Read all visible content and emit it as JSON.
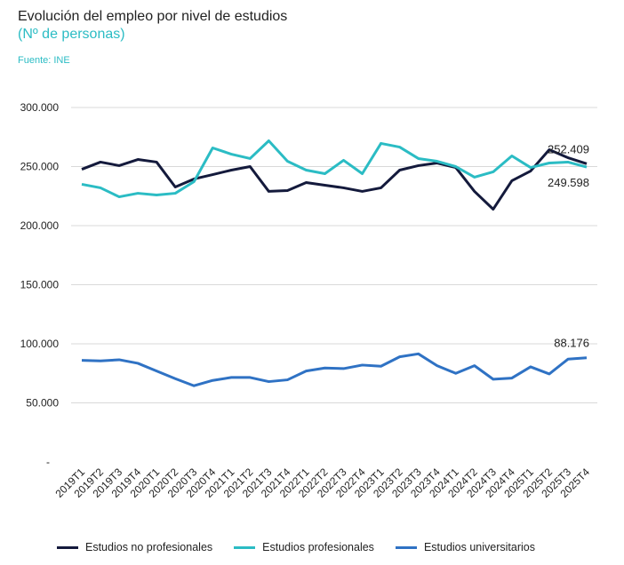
{
  "title": "Evolución del empleo por nivel de estudios",
  "subtitle": "(Nº de personas)",
  "source": "Fuente: INE",
  "chart_data": {
    "type": "line",
    "title": "Evolución del empleo por nivel de estudios",
    "ylim": [
      0,
      300000
    ],
    "yticks": [
      {
        "v": 0,
        "label": "-"
      },
      {
        "v": 50000,
        "label": "50.000"
      },
      {
        "v": 100000,
        "label": "100.000"
      },
      {
        "v": 150000,
        "label": "150.000"
      },
      {
        "v": 200000,
        "label": "200.000"
      },
      {
        "v": 250000,
        "label": "250.000"
      },
      {
        "v": 300000,
        "label": "300.000"
      }
    ],
    "grid": true,
    "legend": "bottom",
    "categories": [
      "2019T1",
      "2019T2",
      "2019T3",
      "2019T4",
      "2020T1",
      "2020T2",
      "2020T3",
      "2020T4",
      "2021T1",
      "2021T2",
      "2021T3",
      "2021T4",
      "2022T1",
      "2022T2",
      "2022T3",
      "2022T4",
      "2023T1",
      "2023T2",
      "2023T3",
      "2023T4",
      "2024T1",
      "2024T2",
      "2024T3",
      "2024T4",
      "2025T1",
      "2025T2",
      "2025T3",
      "2025T4"
    ],
    "series": [
      {
        "name": "Estudios no profesionales",
        "color": "#141a3c",
        "end_label": "252.409",
        "values": [
          247700,
          253800,
          250800,
          256000,
          253800,
          232700,
          239500,
          243200,
          247000,
          250000,
          229000,
          229700,
          236500,
          234200,
          232000,
          229000,
          232000,
          247000,
          250800,
          253000,
          249200,
          229000,
          213900,
          238000,
          246200,
          264300,
          257500,
          252409
        ]
      },
      {
        "name": "Estudios profesionales",
        "color": "#2bbcc4",
        "end_label": "249.598",
        "values": [
          235000,
          232000,
          224400,
          227400,
          225900,
          227400,
          237200,
          265800,
          260500,
          256800,
          271800,
          254500,
          247000,
          244000,
          255300,
          244000,
          269600,
          266500,
          256800,
          254500,
          250000,
          241000,
          245500,
          259000,
          249200,
          253000,
          253800,
          249598
        ]
      },
      {
        "name": "Estudios universitarios",
        "color": "#2f72c4",
        "end_label": "88.176",
        "values": [
          86000,
          85500,
          86500,
          83500,
          77000,
          70500,
          64500,
          69000,
          71500,
          71500,
          68000,
          69500,
          77000,
          79500,
          79000,
          82000,
          81000,
          89000,
          91500,
          81500,
          75000,
          81500,
          70000,
          71000,
          80500,
          74500,
          87000,
          88176
        ]
      }
    ]
  }
}
